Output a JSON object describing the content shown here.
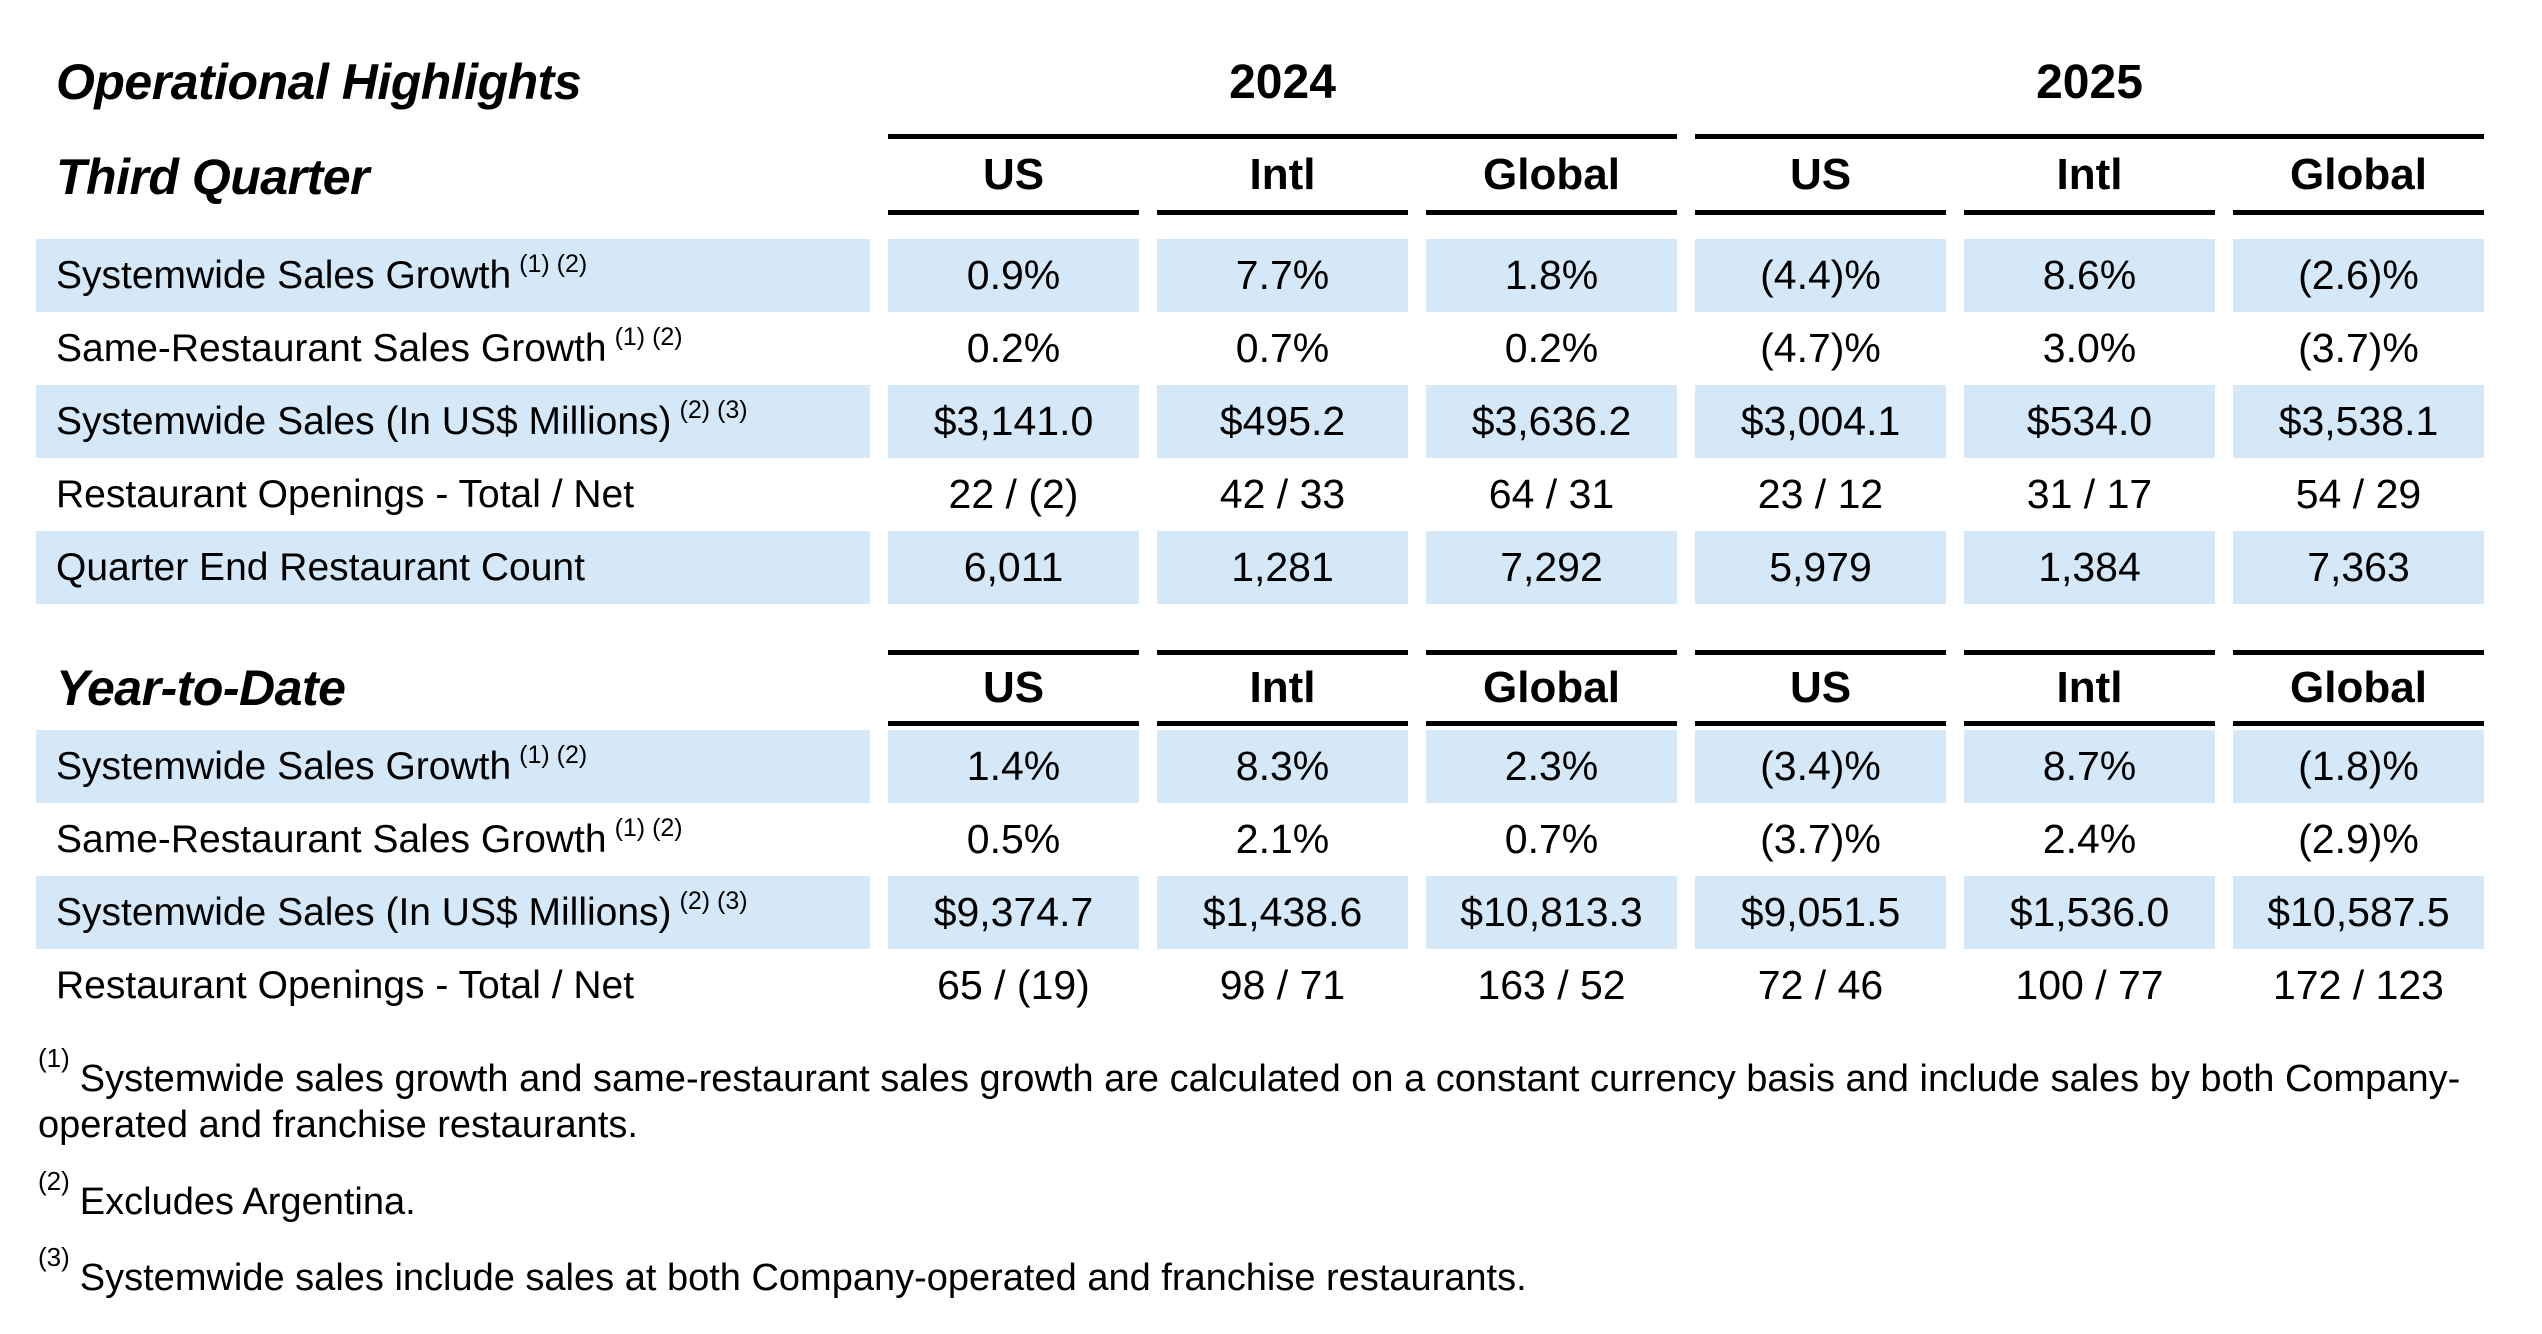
{
  "title": "Operational Highlights",
  "year_groups": [
    "2024",
    "2025"
  ],
  "column_headers": [
    "US",
    "Intl",
    "Global",
    "US",
    "Intl",
    "Global"
  ],
  "colors": {
    "stripe": "#d4e8f8",
    "text": "#000000",
    "rule": "#000000",
    "background": "#ffffff"
  },
  "sections": [
    {
      "label": "Third Quarter",
      "rows": [
        {
          "label": "Systemwide Sales Growth",
          "footnote_refs": "(1) (2)",
          "shaded": true,
          "values": [
            "0.9%",
            "7.7%",
            "1.8%",
            "(4.4)%",
            "8.6%",
            "(2.6)%"
          ]
        },
        {
          "label": "Same-Restaurant Sales Growth",
          "footnote_refs": "(1) (2)",
          "shaded": false,
          "values": [
            "0.2%",
            "0.7%",
            "0.2%",
            "(4.7)%",
            "3.0%",
            "(3.7)%"
          ]
        },
        {
          "label": "Systemwide Sales (In US$ Millions)",
          "footnote_refs": "(2) (3)",
          "shaded": true,
          "values": [
            "$3,141.0",
            "$495.2",
            "$3,636.2",
            "$3,004.1",
            "$534.0",
            "$3,538.1"
          ]
        },
        {
          "label": "Restaurant Openings - Total / Net",
          "footnote_refs": "",
          "shaded": false,
          "values": [
            "22 / (2)",
            "42 / 33",
            "64 / 31",
            "23 / 12",
            "31 / 17",
            "54 / 29"
          ]
        },
        {
          "label": "Quarter End Restaurant Count",
          "footnote_refs": "",
          "shaded": true,
          "values": [
            "6,011",
            "1,281",
            "7,292",
            "5,979",
            "1,384",
            "7,363"
          ]
        }
      ]
    },
    {
      "label": "Year-to-Date",
      "rows": [
        {
          "label": "Systemwide Sales Growth",
          "footnote_refs": "(1) (2)",
          "shaded": true,
          "values": [
            "1.4%",
            "8.3%",
            "2.3%",
            "(3.4)%",
            "8.7%",
            "(1.8)%"
          ]
        },
        {
          "label": "Same-Restaurant Sales Growth",
          "footnote_refs": "(1) (2)",
          "shaded": false,
          "values": [
            "0.5%",
            "2.1%",
            "0.7%",
            "(3.7)%",
            "2.4%",
            "(2.9)%"
          ]
        },
        {
          "label": "Systemwide Sales (In US$ Millions)",
          "footnote_refs": "(2) (3)",
          "shaded": true,
          "values": [
            "$9,374.7",
            "$1,438.6",
            "$10,813.3",
            "$9,051.5",
            "$1,536.0",
            "$10,587.5"
          ]
        },
        {
          "label": "Restaurant Openings - Total / Net",
          "footnote_refs": "",
          "shaded": false,
          "values": [
            "65 / (19)",
            "98 / 71",
            "163 / 52",
            "72 / 46",
            "100 / 77",
            "172 / 123"
          ]
        }
      ]
    }
  ],
  "footnotes": [
    {
      "marker": "(1)",
      "text": "Systemwide sales growth and same-restaurant sales growth are calculated on a constant currency basis and include sales by both Company-operated and franchise restaurants."
    },
    {
      "marker": "(2)",
      "text": "Excludes Argentina."
    },
    {
      "marker": "(3)",
      "text": "Systemwide sales include sales at both Company-operated and franchise restaurants."
    }
  ]
}
